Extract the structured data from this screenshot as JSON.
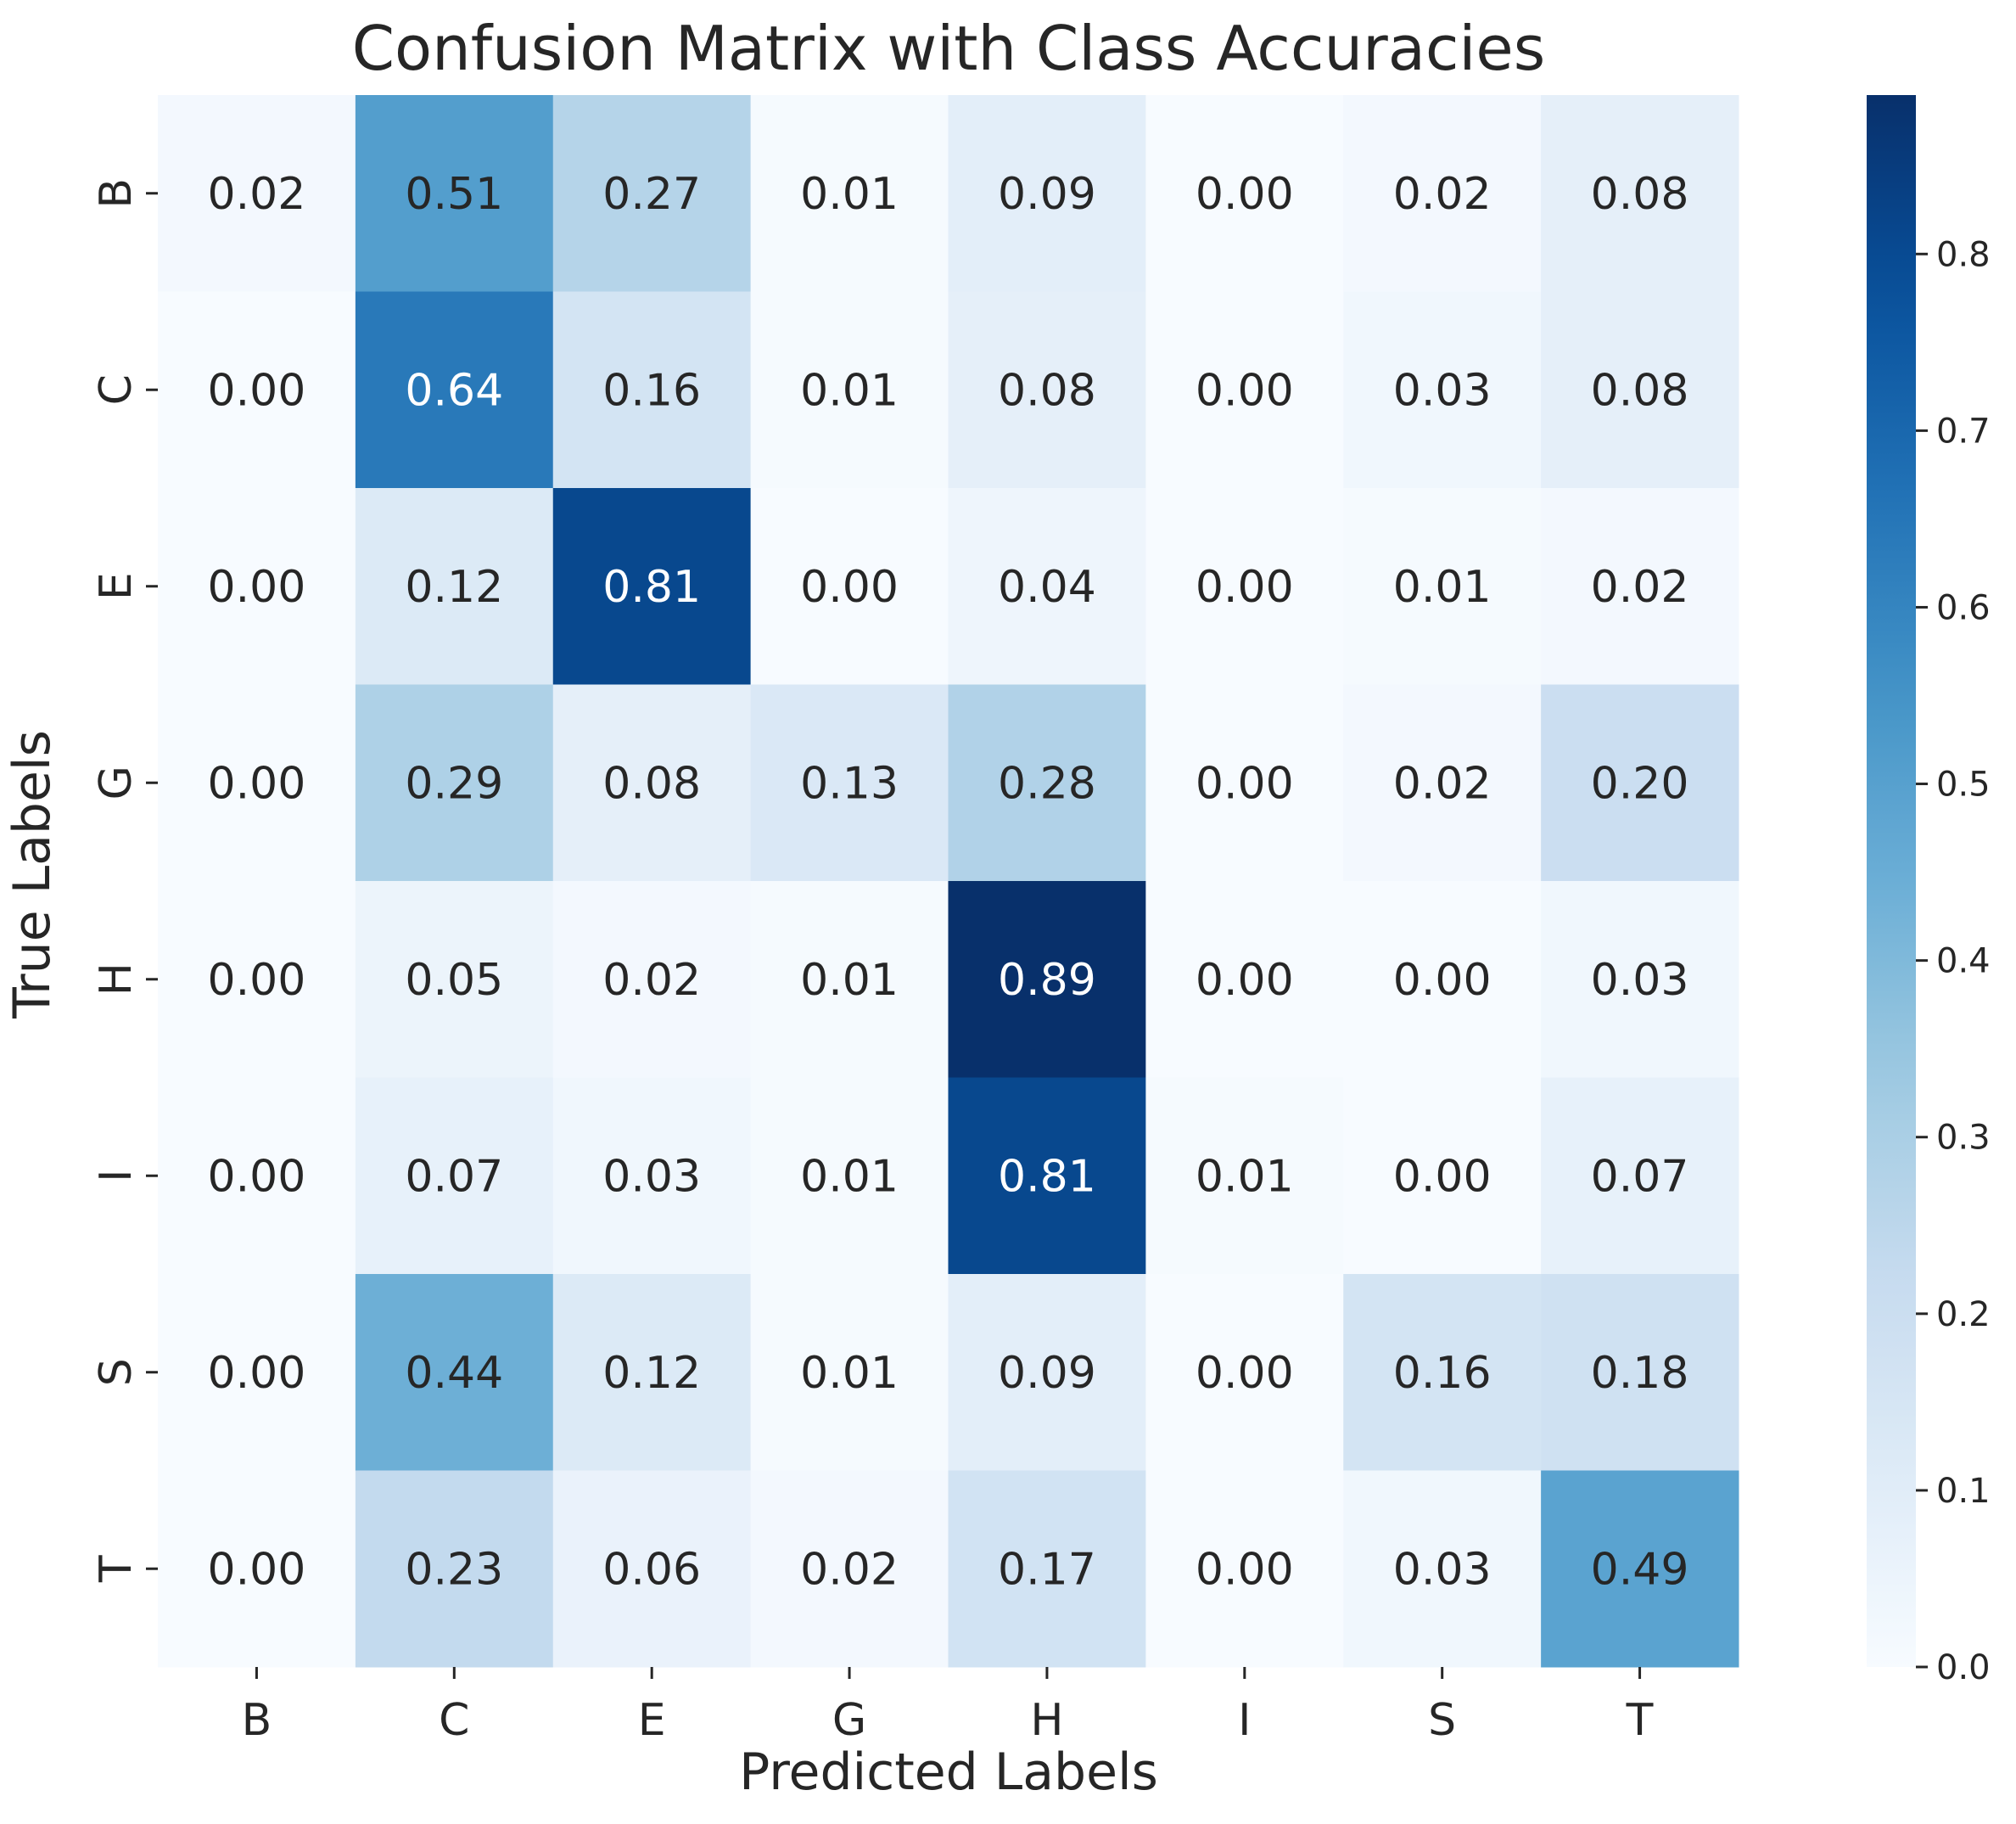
{
  "chart_data": {
    "type": "heatmap",
    "title": "Confusion Matrix with Class Accuracies",
    "xlabel": "Predicted Labels",
    "ylabel": "True Labels",
    "x_categories": [
      "B",
      "C",
      "E",
      "G",
      "H",
      "I",
      "S",
      "T"
    ],
    "y_categories": [
      "B",
      "C",
      "E",
      "G",
      "H",
      "I",
      "S",
      "T"
    ],
    "values": [
      [
        0.02,
        0.51,
        0.27,
        0.01,
        0.09,
        0.0,
        0.02,
        0.08
      ],
      [
        0.0,
        0.64,
        0.16,
        0.01,
        0.08,
        0.0,
        0.03,
        0.08
      ],
      [
        0.0,
        0.12,
        0.81,
        0.0,
        0.04,
        0.0,
        0.01,
        0.02
      ],
      [
        0.0,
        0.29,
        0.08,
        0.13,
        0.28,
        0.0,
        0.02,
        0.2
      ],
      [
        0.0,
        0.05,
        0.02,
        0.01,
        0.89,
        0.0,
        0.0,
        0.03
      ],
      [
        0.0,
        0.07,
        0.03,
        0.01,
        0.81,
        0.01,
        0.0,
        0.07
      ],
      [
        0.0,
        0.44,
        0.12,
        0.01,
        0.09,
        0.0,
        0.16,
        0.18
      ],
      [
        0.0,
        0.23,
        0.06,
        0.02,
        0.17,
        0.0,
        0.03,
        0.49
      ]
    ],
    "value_format": "0.00",
    "colormap": "Blues",
    "color_range": [
      0.0,
      0.89
    ],
    "colorbar": {
      "ticks": [
        0.0,
        0.1,
        0.2,
        0.3,
        0.4,
        0.5,
        0.6,
        0.7,
        0.8
      ],
      "tick_labels": [
        "0.0",
        "0.1",
        "0.2",
        "0.3",
        "0.4",
        "0.5",
        "0.6",
        "0.7",
        "0.8"
      ]
    },
    "grid": false,
    "colors": {
      "text_dark": "#262626",
      "text_light": "#ffffff"
    }
  }
}
